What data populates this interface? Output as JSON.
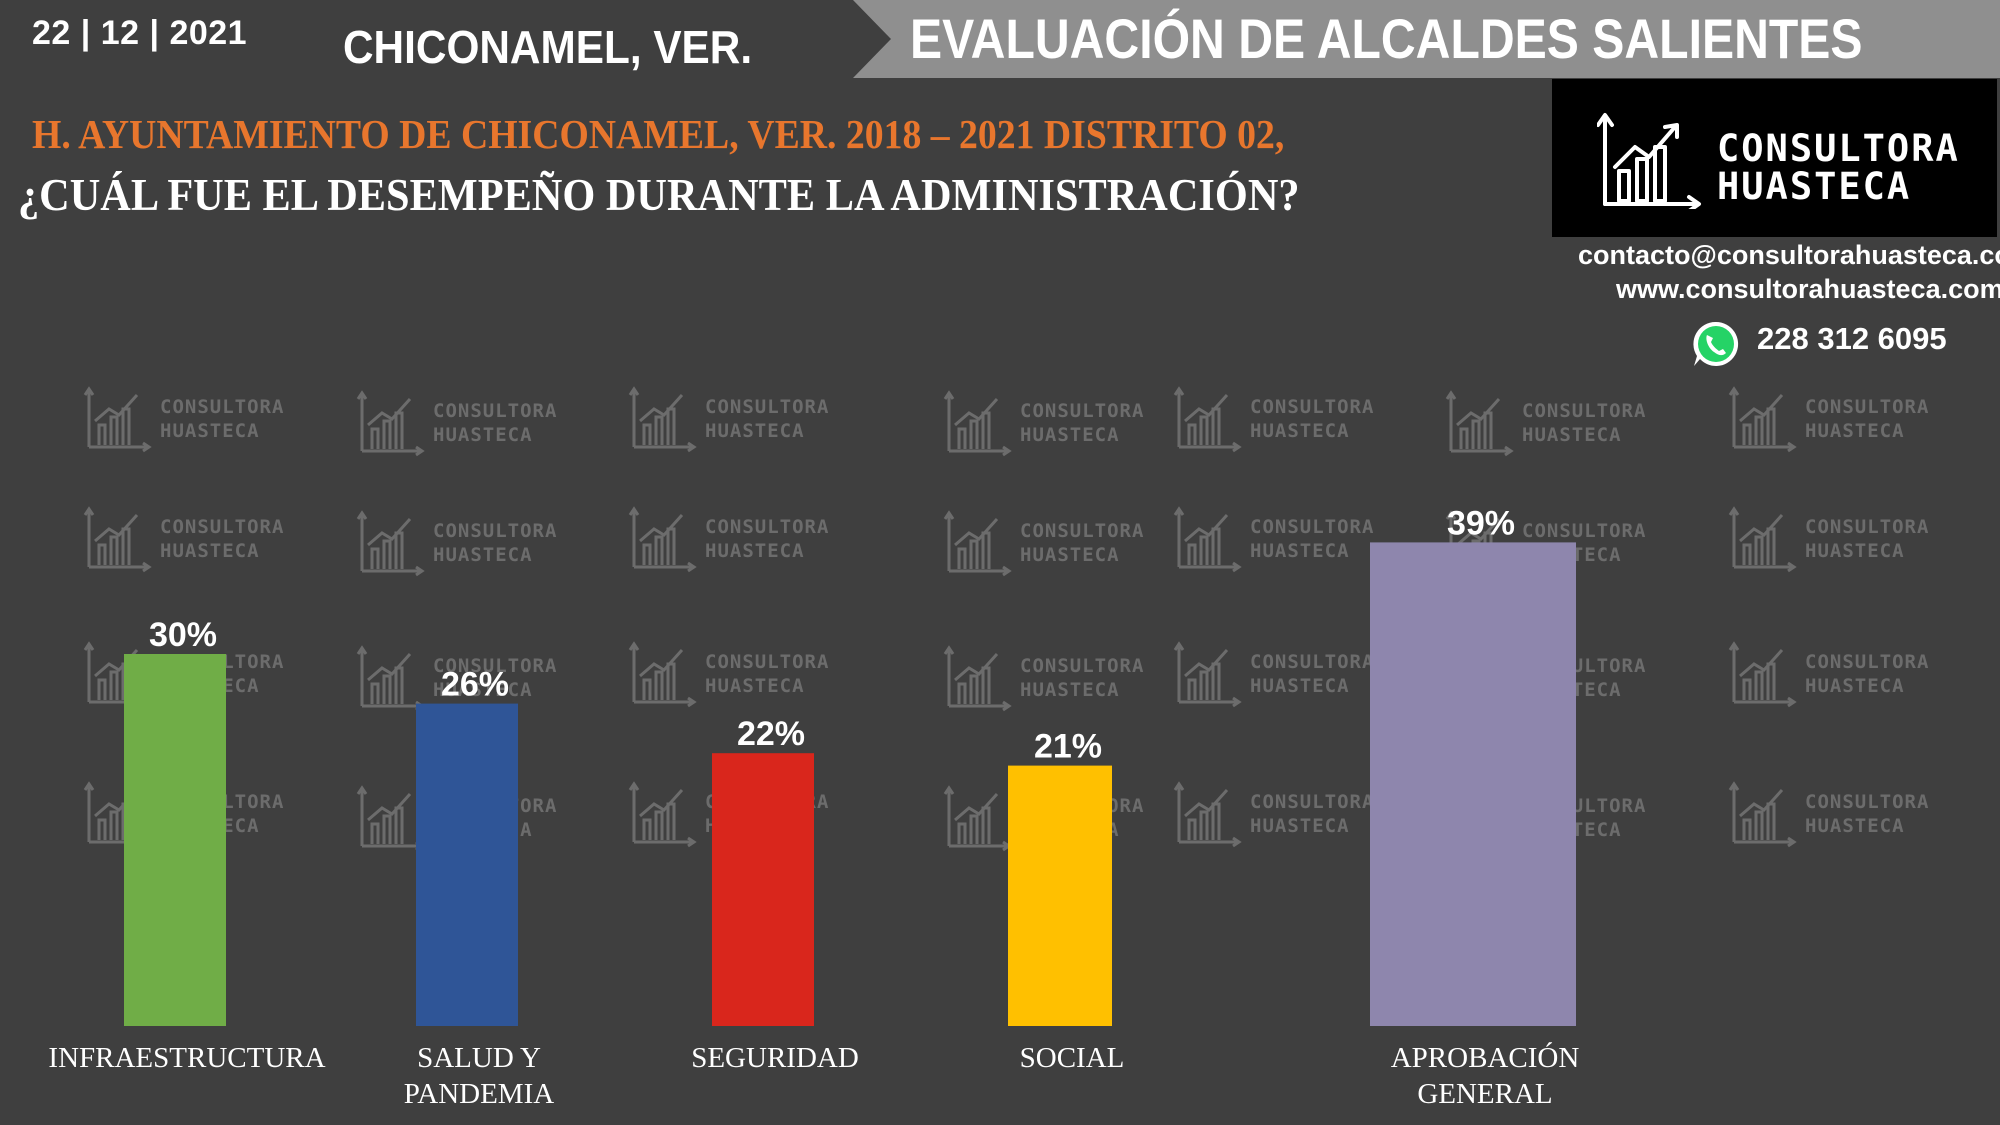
{
  "header": {
    "date": "22 | 12 | 2021",
    "city": "CHICONAMEL, VER.",
    "banner_title": "EVALUACIÓN DE ALCALDES SALIENTES"
  },
  "subtitle": "H. AYUNTAMIENTO DE CHICONAMEL, VER. 2018 – 2021 DISTRITO 02,",
  "question": "¿CUÁL FUE EL DESEMPEÑO DURANTE LA ADMINISTRACIÓN?",
  "brand": {
    "logo_line1": "CONSULTORA",
    "logo_line2": "HUASTECA",
    "email": "contacto@consultorahuasteca.com",
    "website": "www.consultorahuasteca.com",
    "phone": "228 312 6095",
    "phone_icon": "whatsapp-icon"
  },
  "colors": {
    "background": "#3f3f3f",
    "banner": "#8f8f8f",
    "subtitle": "#e8762d"
  },
  "chart_data": {
    "type": "bar",
    "title": "",
    "xlabel": "",
    "ylabel": "",
    "ylim": [
      0,
      40
    ],
    "grid": false,
    "categories": [
      [
        "INFRAESTRUCTURA"
      ],
      [
        "SALUD Y",
        "PANDEMIA"
      ],
      [
        "SEGURIDAD"
      ],
      [
        "SOCIAL"
      ],
      [
        "APROBACIÓN",
        "GENERAL"
      ]
    ],
    "values": [
      30,
      26,
      22,
      21,
      39
    ],
    "value_labels": [
      "30%",
      "26%",
      "22%",
      "21%",
      "39%"
    ],
    "colors": [
      "#70ad47",
      "#2f5597",
      "#d9261c",
      "#ffc000",
      "#8e86ad"
    ]
  }
}
